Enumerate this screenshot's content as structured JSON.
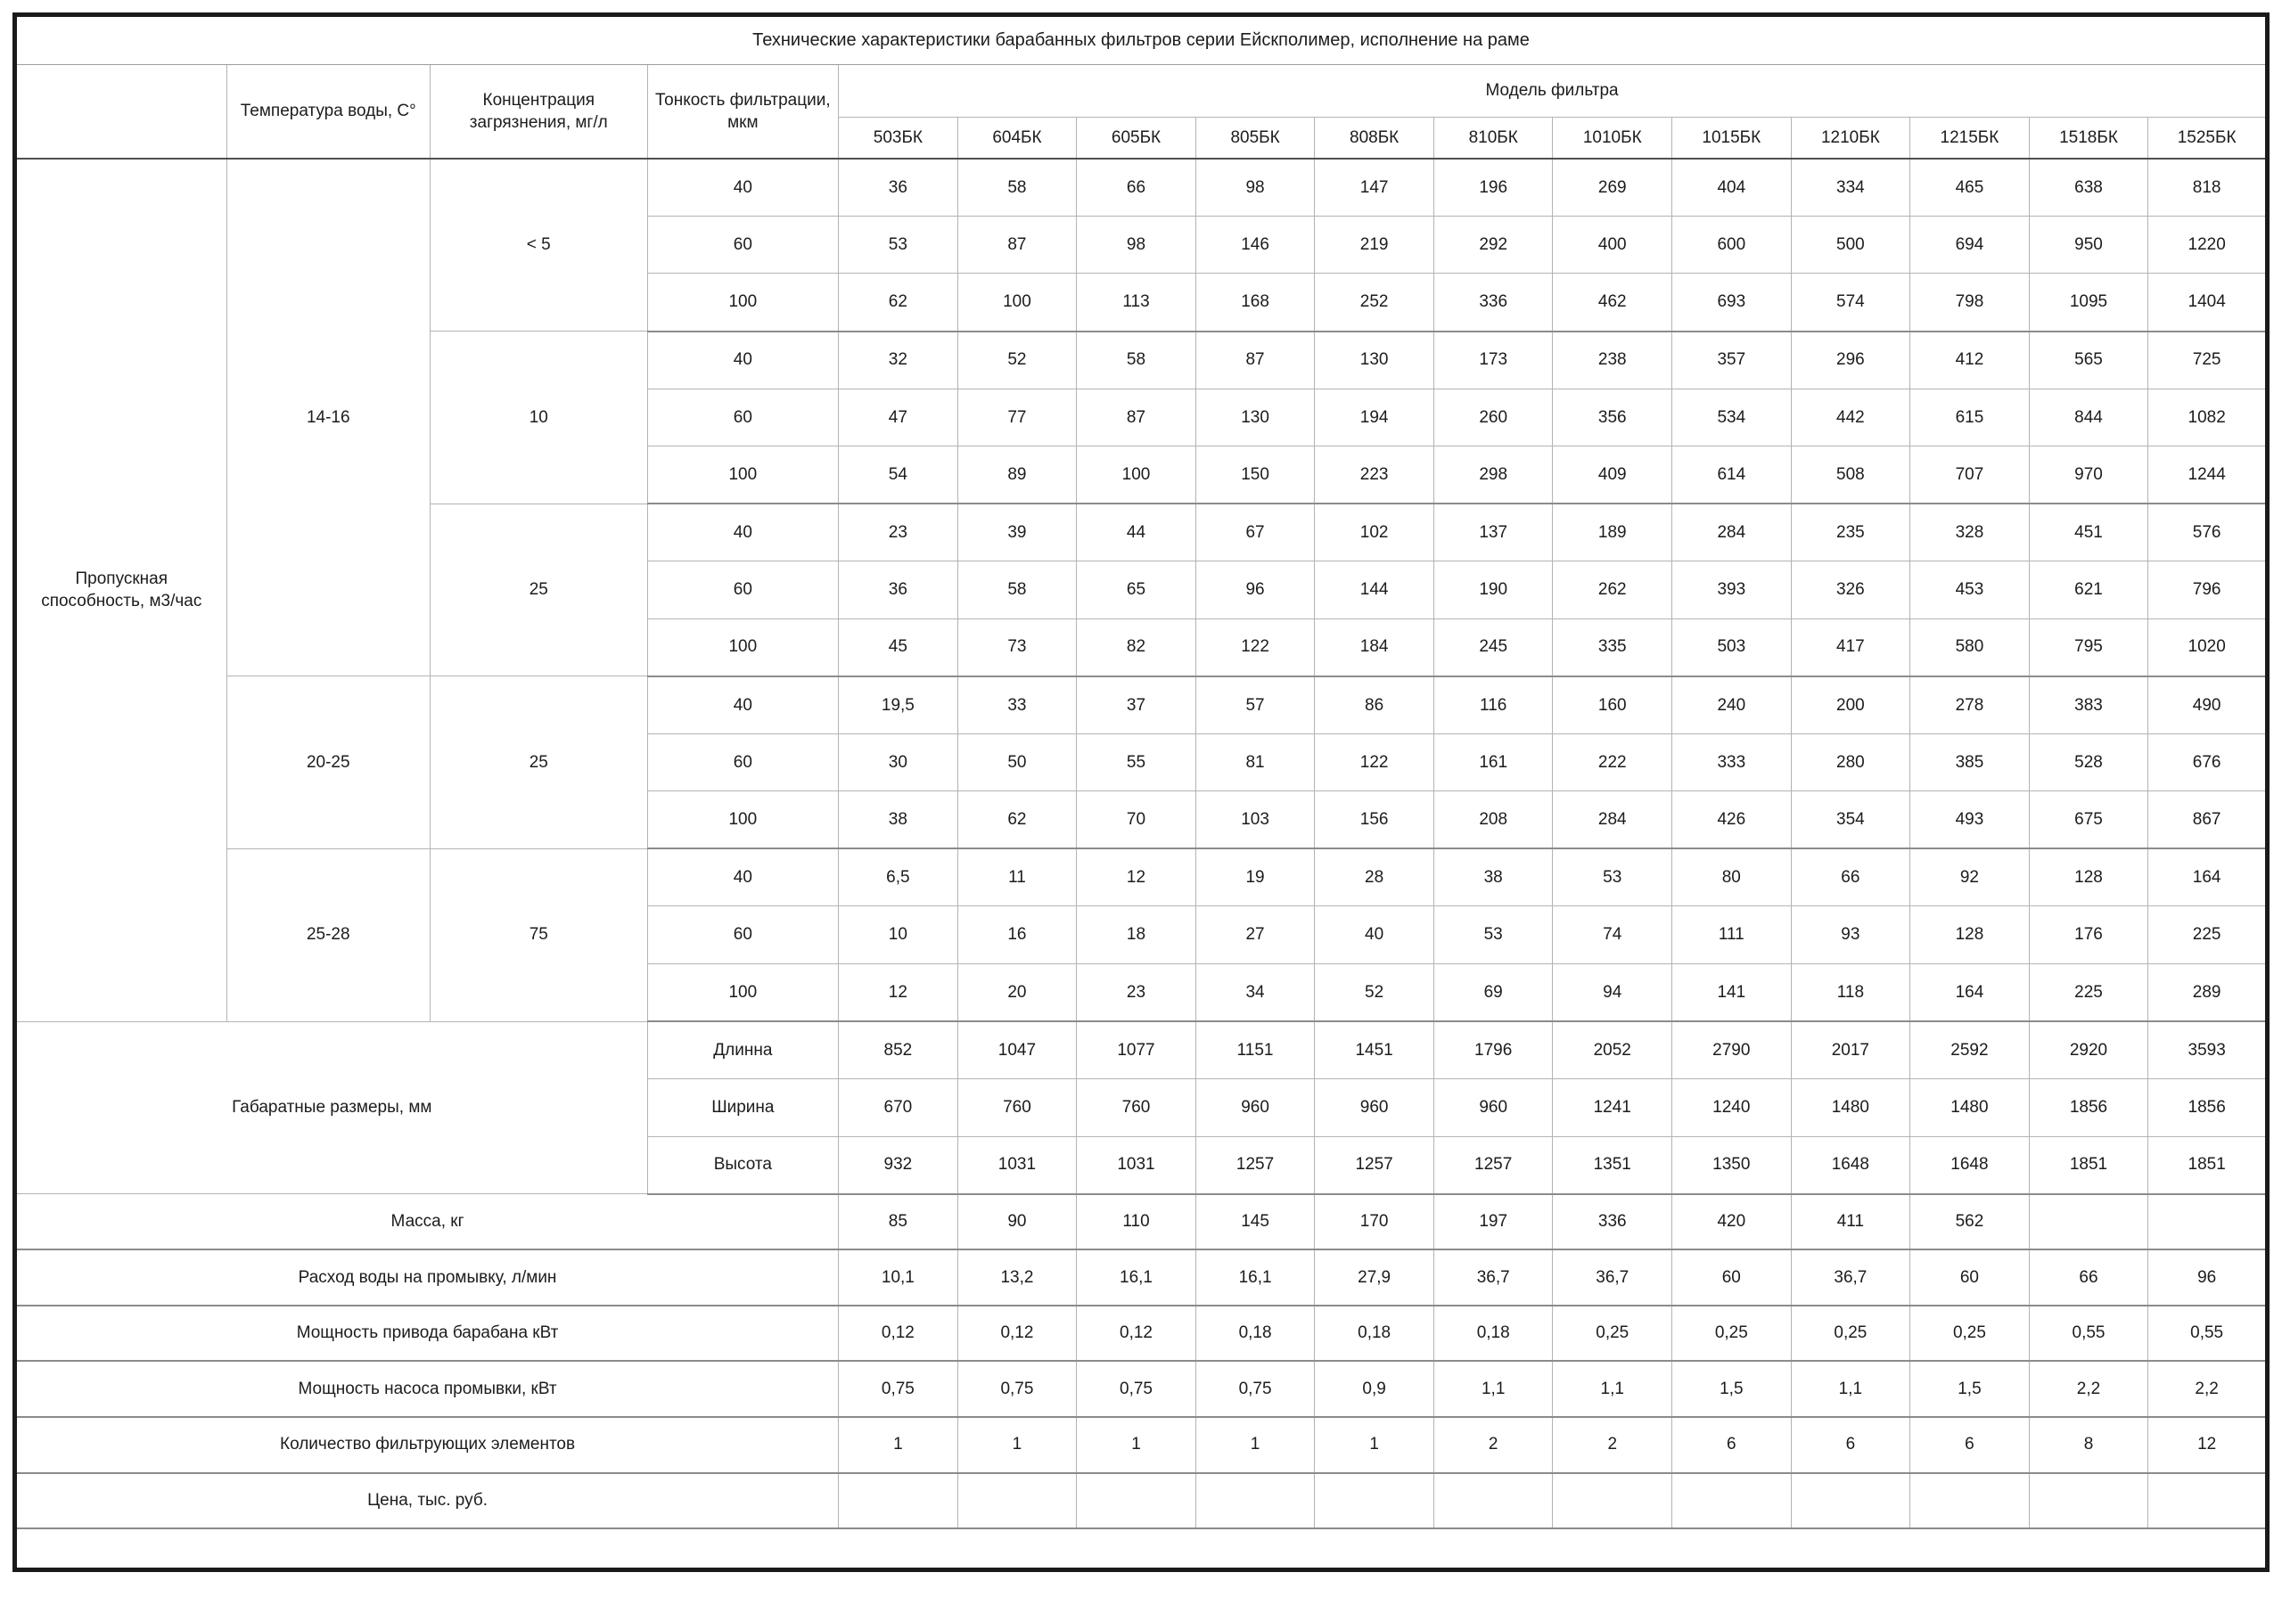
{
  "title": "Технические характеристики барабанных фильтров серии Ейскполимер, исполнение на раме",
  "header": {
    "temperature": "Температура воды, С°",
    "concentration": "Концентрация загрязнения, мг/л",
    "fineness": "Тонкость фильтрации, мкм",
    "model_group": "Модель фильтра",
    "models": [
      "503БК",
      "604БК",
      "605БК",
      "805БК",
      "808БК",
      "810БК",
      "1010БК",
      "1015БК",
      "1210БК",
      "1215БК",
      "1518БК",
      "1525БК"
    ]
  },
  "throughput": {
    "label": "Пропускная способность, м3/час",
    "groups": [
      {
        "temp": "14-16",
        "concentrations": [
          {
            "conc": "< 5",
            "rows": [
              {
                "fineness": "40",
                "values": [
                  "36",
                  "58",
                  "66",
                  "98",
                  "147",
                  "196",
                  "269",
                  "404",
                  "334",
                  "465",
                  "638",
                  "818"
                ]
              },
              {
                "fineness": "60",
                "values": [
                  "53",
                  "87",
                  "98",
                  "146",
                  "219",
                  "292",
                  "400",
                  "600",
                  "500",
                  "694",
                  "950",
                  "1220"
                ]
              },
              {
                "fineness": "100",
                "values": [
                  "62",
                  "100",
                  "113",
                  "168",
                  "252",
                  "336",
                  "462",
                  "693",
                  "574",
                  "798",
                  "1095",
                  "1404"
                ]
              }
            ]
          },
          {
            "conc": "10",
            "rows": [
              {
                "fineness": "40",
                "values": [
                  "32",
                  "52",
                  "58",
                  "87",
                  "130",
                  "173",
                  "238",
                  "357",
                  "296",
                  "412",
                  "565",
                  "725"
                ]
              },
              {
                "fineness": "60",
                "values": [
                  "47",
                  "77",
                  "87",
                  "130",
                  "194",
                  "260",
                  "356",
                  "534",
                  "442",
                  "615",
                  "844",
                  "1082"
                ]
              },
              {
                "fineness": "100",
                "values": [
                  "54",
                  "89",
                  "100",
                  "150",
                  "223",
                  "298",
                  "409",
                  "614",
                  "508",
                  "707",
                  "970",
                  "1244"
                ]
              }
            ]
          },
          {
            "conc": "25",
            "rows": [
              {
                "fineness": "40",
                "values": [
                  "23",
                  "39",
                  "44",
                  "67",
                  "102",
                  "137",
                  "189",
                  "284",
                  "235",
                  "328",
                  "451",
                  "576"
                ]
              },
              {
                "fineness": "60",
                "values": [
                  "36",
                  "58",
                  "65",
                  "96",
                  "144",
                  "190",
                  "262",
                  "393",
                  "326",
                  "453",
                  "621",
                  "796"
                ]
              },
              {
                "fineness": "100",
                "values": [
                  "45",
                  "73",
                  "82",
                  "122",
                  "184",
                  "245",
                  "335",
                  "503",
                  "417",
                  "580",
                  "795",
                  "1020"
                ]
              }
            ]
          }
        ]
      },
      {
        "temp": "20-25",
        "concentrations": [
          {
            "conc": "25",
            "rows": [
              {
                "fineness": "40",
                "values": [
                  "19,5",
                  "33",
                  "37",
                  "57",
                  "86",
                  "116",
                  "160",
                  "240",
                  "200",
                  "278",
                  "383",
                  "490"
                ]
              },
              {
                "fineness": "60",
                "values": [
                  "30",
                  "50",
                  "55",
                  "81",
                  "122",
                  "161",
                  "222",
                  "333",
                  "280",
                  "385",
                  "528",
                  "676"
                ]
              },
              {
                "fineness": "100",
                "values": [
                  "38",
                  "62",
                  "70",
                  "103",
                  "156",
                  "208",
                  "284",
                  "426",
                  "354",
                  "493",
                  "675",
                  "867"
                ]
              }
            ]
          }
        ]
      },
      {
        "temp": "25-28",
        "concentrations": [
          {
            "conc": "75",
            "rows": [
              {
                "fineness": "40",
                "values": [
                  "6,5",
                  "11",
                  "12",
                  "19",
                  "28",
                  "38",
                  "53",
                  "80",
                  "66",
                  "92",
                  "128",
                  "164"
                ]
              },
              {
                "fineness": "60",
                "values": [
                  "10",
                  "16",
                  "18",
                  "27",
                  "40",
                  "53",
                  "74",
                  "111",
                  "93",
                  "128",
                  "176",
                  "225"
                ]
              },
              {
                "fineness": "100",
                "values": [
                  "12",
                  "20",
                  "23",
                  "34",
                  "52",
                  "69",
                  "94",
                  "141",
                  "118",
                  "164",
                  "225",
                  "289"
                ]
              }
            ]
          }
        ]
      }
    ]
  },
  "dimensions": {
    "label": "Габаратные размеры, мм",
    "rows": [
      {
        "name": "Длинна",
        "values": [
          "852",
          "1047",
          "1077",
          "1151",
          "1451",
          "1796",
          "2052",
          "2790",
          "2017",
          "2592",
          "2920",
          "3593"
        ]
      },
      {
        "name": "Ширина",
        "values": [
          "670",
          "760",
          "760",
          "960",
          "960",
          "960",
          "1241",
          "1240",
          "1480",
          "1480",
          "1856",
          "1856"
        ]
      },
      {
        "name": "Высота",
        "values": [
          "932",
          "1031",
          "1031",
          "1257",
          "1257",
          "1257",
          "1351",
          "1350",
          "1648",
          "1648",
          "1851",
          "1851"
        ]
      }
    ]
  },
  "spec_rows": [
    {
      "label": "Масса, кг",
      "values": [
        "85",
        "90",
        "110",
        "145",
        "170",
        "197",
        "336",
        "420",
        "411",
        "562",
        "",
        ""
      ]
    },
    {
      "label": "Расход воды на промывку, л/мин",
      "values": [
        "10,1",
        "13,2",
        "16,1",
        "16,1",
        "27,9",
        "36,7",
        "36,7",
        "60",
        "36,7",
        "60",
        "66",
        "96"
      ]
    },
    {
      "label": "Мощность привода барабана кВт",
      "values": [
        "0,12",
        "0,12",
        "0,12",
        "0,18",
        "0,18",
        "0,18",
        "0,25",
        "0,25",
        "0,25",
        "0,25",
        "0,55",
        "0,55"
      ]
    },
    {
      "label": "Мощность насоса промывки, кВт",
      "values": [
        "0,75",
        "0,75",
        "0,75",
        "0,75",
        "0,9",
        "1,1",
        "1,1",
        "1,5",
        "1,1",
        "1,5",
        "2,2",
        "2,2"
      ]
    },
    {
      "label": "Количество фильтрующих элементов",
      "values": [
        "1",
        "1",
        "1",
        "1",
        "1",
        "2",
        "2",
        "6",
        "6",
        "6",
        "8",
        "12"
      ]
    },
    {
      "label": "Цена, тыс. руб.",
      "values": [
        "",
        "",
        "",
        "",
        "",
        "",
        "",
        "",
        "",
        "",
        "",
        ""
      ]
    }
  ]
}
